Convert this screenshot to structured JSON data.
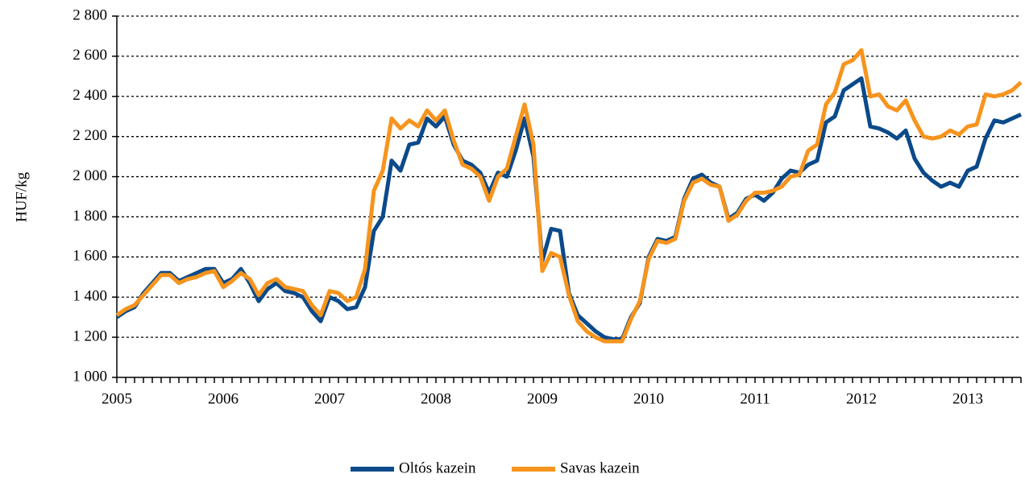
{
  "chart_data": {
    "type": "line",
    "y_label": "HUF/kg",
    "categories": [
      "2005",
      null,
      null,
      null,
      null,
      null,
      null,
      null,
      null,
      null,
      null,
      null,
      "2006",
      null,
      null,
      null,
      null,
      null,
      null,
      null,
      null,
      null,
      null,
      null,
      "2007",
      null,
      null,
      null,
      null,
      null,
      null,
      null,
      null,
      null,
      null,
      null,
      "2008",
      null,
      null,
      null,
      null,
      null,
      null,
      null,
      null,
      null,
      null,
      null,
      "2009",
      null,
      null,
      null,
      null,
      null,
      null,
      null,
      null,
      null,
      null,
      null,
      "2010",
      null,
      null,
      null,
      null,
      null,
      null,
      null,
      null,
      null,
      null,
      null,
      "2011",
      null,
      null,
      null,
      null,
      null,
      null,
      null,
      null,
      null,
      null,
      null,
      "2012",
      null,
      null,
      null,
      null,
      null,
      null,
      null,
      null,
      null,
      null,
      null,
      "2013",
      null,
      null,
      null,
      null,
      null,
      null
    ],
    "series": [
      {
        "name": "Oltós kazein",
        "color": "#0b4a8a",
        "values": [
          1300,
          1330,
          1350,
          1420,
          1470,
          1520,
          1520,
          1480,
          1500,
          1520,
          1540,
          1540,
          1470,
          1490,
          1540,
          1470,
          1380,
          1440,
          1470,
          1430,
          1420,
          1400,
          1330,
          1280,
          1400,
          1380,
          1340,
          1350,
          1450,
          1730,
          1800,
          2080,
          2030,
          2160,
          2170,
          2290,
          2250,
          2300,
          2160,
          2080,
          2060,
          2020,
          1920,
          2020,
          2000,
          2130,
          2290,
          2100,
          1580,
          1740,
          1730,
          1420,
          1310,
          1270,
          1230,
          1200,
          1190,
          1190,
          1300,
          1370,
          1600,
          1690,
          1680,
          1700,
          1890,
          1990,
          2010,
          1970,
          1950,
          1790,
          1820,
          1890,
          1910,
          1880,
          1920,
          1990,
          2030,
          2020,
          2060,
          2080,
          2270,
          2300,
          2430,
          2460,
          2490,
          2250,
          2240,
          2220,
          2190,
          2230,
          2090,
          2020,
          1980,
          1950,
          1970,
          1950,
          2030,
          2050,
          2190,
          2280,
          2270,
          2290,
          2310
        ]
      },
      {
        "name": "Savas kazein",
        "color": "#f7941d",
        "values": [
          1310,
          1340,
          1360,
          1410,
          1460,
          1510,
          1510,
          1470,
          1490,
          1500,
          1520,
          1530,
          1450,
          1480,
          1520,
          1490,
          1410,
          1470,
          1490,
          1450,
          1440,
          1430,
          1360,
          1310,
          1430,
          1420,
          1380,
          1400,
          1540,
          1930,
          2030,
          2290,
          2240,
          2280,
          2250,
          2330,
          2280,
          2330,
          2180,
          2060,
          2040,
          2000,
          1880,
          2000,
          2040,
          2200,
          2360,
          2160,
          1530,
          1620,
          1600,
          1410,
          1280,
          1230,
          1200,
          1180,
          1180,
          1180,
          1290,
          1380,
          1590,
          1680,
          1670,
          1690,
          1880,
          1970,
          1990,
          1960,
          1950,
          1780,
          1810,
          1880,
          1920,
          1920,
          1930,
          1950,
          2000,
          2010,
          2130,
          2160,
          2360,
          2420,
          2560,
          2580,
          2630,
          2400,
          2410,
          2350,
          2330,
          2380,
          2280,
          2200,
          2190,
          2200,
          2230,
          2210,
          2250,
          2260,
          2410,
          2400,
          2410,
          2430,
          2470
        ]
      }
    ],
    "ylim": [
      1000,
      2800
    ],
    "yticks": [
      {
        "value": 1000,
        "label": "1 000"
      },
      {
        "value": 1200,
        "label": "1 200"
      },
      {
        "value": 1400,
        "label": "1 400"
      },
      {
        "value": 1600,
        "label": "1 600"
      },
      {
        "value": 1800,
        "label": "1 800"
      },
      {
        "value": 2000,
        "label": "2 000"
      },
      {
        "value": 2200,
        "label": "2 200"
      },
      {
        "value": 2400,
        "label": "2 400"
      },
      {
        "value": 2600,
        "label": "2 600"
      },
      {
        "value": 2800,
        "label": "2 800"
      }
    ],
    "grid": true,
    "legend": "bottom"
  }
}
